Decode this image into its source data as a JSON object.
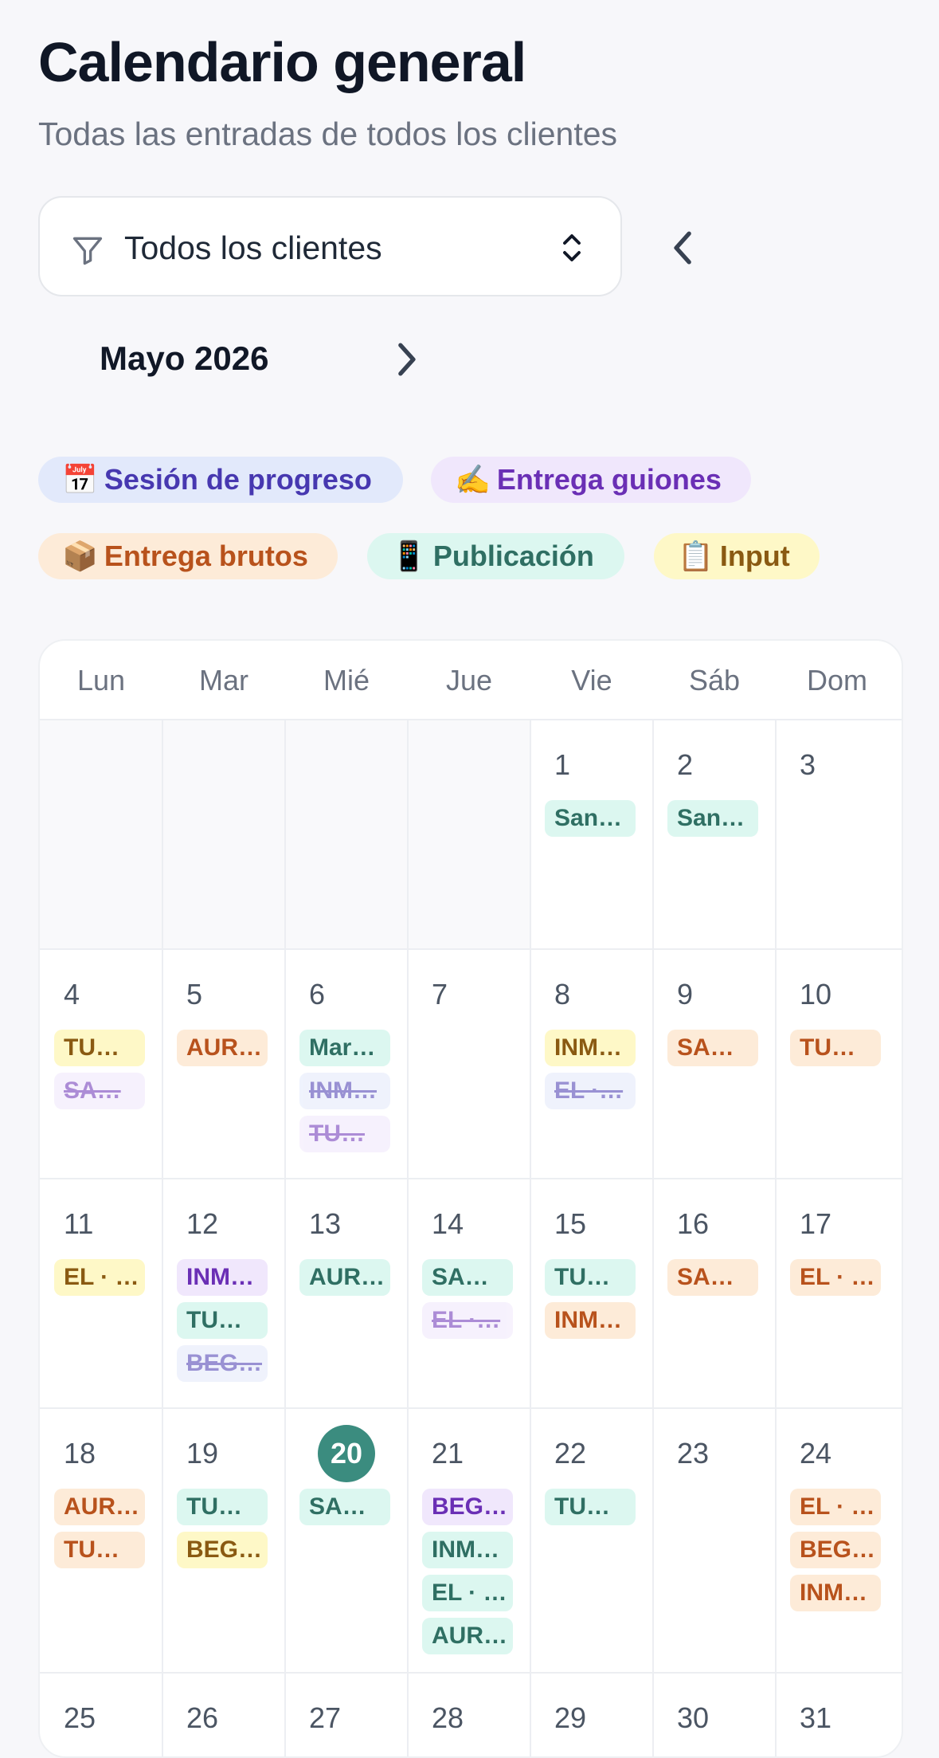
{
  "header": {
    "title": "Calendario general",
    "subtitle": "Todas las entradas de todos los clientes"
  },
  "filter": {
    "value": "Todos los clientes",
    "icon": "funnel-icon"
  },
  "nav": {
    "month_label": "Mayo 2026",
    "prev_icon": "chevron-left-icon",
    "next_icon": "chevron-right-icon"
  },
  "legend": [
    {
      "emoji": "📅",
      "label": "Sesión de progreso",
      "type": "ses"
    },
    {
      "emoji": "✍️",
      "label": "Entrega guiones",
      "type": "gui"
    },
    {
      "emoji": "📦",
      "label": "Entrega brutos",
      "type": "bru"
    },
    {
      "emoji": "📱",
      "label": "Publicación",
      "type": "pub"
    },
    {
      "emoji": "📋",
      "label": "Input",
      "type": "inp"
    }
  ],
  "colors": {
    "ses": "#4738b0",
    "gui": "#6a2fb5",
    "bru": "#b8521c",
    "pub": "#2f6f63",
    "inp": "#8a5a12",
    "today": "#3b8c7f"
  },
  "weekdays": [
    "Lun",
    "Mar",
    "Mié",
    "Jue",
    "Vie",
    "Sáb",
    "Dom"
  ],
  "calendar": {
    "today": 20,
    "leading_blanks": 4,
    "days": [
      {
        "day": 1,
        "events": [
          {
            "label": "San…",
            "type": "pub"
          }
        ]
      },
      {
        "day": 2,
        "events": [
          {
            "label": "San…",
            "type": "pub"
          }
        ]
      },
      {
        "day": 3,
        "events": []
      },
      {
        "day": 4,
        "events": [
          {
            "label": "TU…",
            "type": "inp"
          },
          {
            "label": "SA…",
            "type": "gui",
            "done": true
          }
        ]
      },
      {
        "day": 5,
        "events": [
          {
            "label": "AUR…",
            "type": "bru"
          }
        ]
      },
      {
        "day": 6,
        "events": [
          {
            "label": "Mar…",
            "type": "pub"
          },
          {
            "label": "INM…",
            "type": "ses",
            "done": true
          },
          {
            "label": "TU…",
            "type": "gui",
            "done": true
          }
        ]
      },
      {
        "day": 7,
        "events": []
      },
      {
        "day": 8,
        "events": [
          {
            "label": "INM…",
            "type": "inp"
          },
          {
            "label": "EL ·…",
            "type": "ses",
            "done": true
          }
        ]
      },
      {
        "day": 9,
        "events": [
          {
            "label": "SA…",
            "type": "bru"
          }
        ]
      },
      {
        "day": 10,
        "events": [
          {
            "label": "TU…",
            "type": "bru"
          }
        ]
      },
      {
        "day": 11,
        "events": [
          {
            "label": "EL · …",
            "type": "inp"
          }
        ]
      },
      {
        "day": 12,
        "events": [
          {
            "label": "INM…",
            "type": "gui"
          },
          {
            "label": "TU…",
            "type": "pub"
          },
          {
            "label": "BEG…",
            "type": "ses",
            "done": true
          }
        ]
      },
      {
        "day": 13,
        "events": [
          {
            "label": "AUR…",
            "type": "pub"
          }
        ]
      },
      {
        "day": 14,
        "events": [
          {
            "label": "SA…",
            "type": "pub"
          },
          {
            "label": "EL ·…",
            "type": "gui",
            "done": true
          }
        ]
      },
      {
        "day": 15,
        "events": [
          {
            "label": "TU…",
            "type": "pub"
          },
          {
            "label": "INM…",
            "type": "bru"
          }
        ]
      },
      {
        "day": 16,
        "events": [
          {
            "label": "SA…",
            "type": "bru"
          }
        ]
      },
      {
        "day": 17,
        "events": [
          {
            "label": "EL · …",
            "type": "bru"
          }
        ]
      },
      {
        "day": 18,
        "events": [
          {
            "label": "AUR…",
            "type": "bru"
          },
          {
            "label": "TU…",
            "type": "bru"
          }
        ]
      },
      {
        "day": 19,
        "events": [
          {
            "label": "TU…",
            "type": "pub"
          },
          {
            "label": "BEG…",
            "type": "inp"
          }
        ]
      },
      {
        "day": 20,
        "events": [
          {
            "label": "SA…",
            "type": "pub"
          }
        ]
      },
      {
        "day": 21,
        "events": [
          {
            "label": "BEG…",
            "type": "gui"
          },
          {
            "label": "INM…",
            "type": "pub"
          },
          {
            "label": "EL · …",
            "type": "pub"
          },
          {
            "label": "AUR…",
            "type": "pub"
          }
        ]
      },
      {
        "day": 22,
        "events": [
          {
            "label": "TU…",
            "type": "pub"
          }
        ]
      },
      {
        "day": 23,
        "events": []
      },
      {
        "day": 24,
        "events": [
          {
            "label": "EL · …",
            "type": "bru"
          },
          {
            "label": "BEG…",
            "type": "bru"
          },
          {
            "label": "INM…",
            "type": "bru"
          }
        ]
      },
      {
        "day": 25,
        "events": []
      },
      {
        "day": 26,
        "events": []
      },
      {
        "day": 27,
        "events": []
      },
      {
        "day": 28,
        "events": []
      },
      {
        "day": 29,
        "events": []
      },
      {
        "day": 30,
        "events": []
      },
      {
        "day": 31,
        "events": []
      }
    ]
  }
}
